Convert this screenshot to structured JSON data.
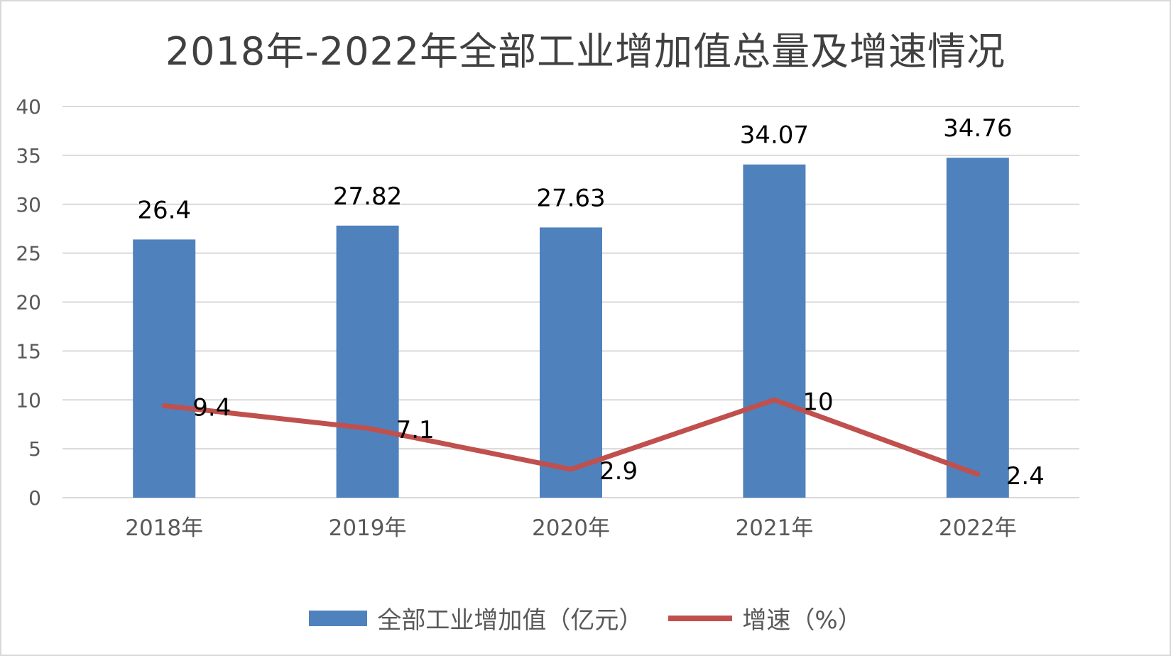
{
  "title": "2018年-2022年全部工业增加值总量及增速情况",
  "colors": {
    "bar": "#4f81bd",
    "line": "#c0504d",
    "grid": "#d9d9d9",
    "tick_text": "#595959"
  },
  "chart_data": {
    "type": "bar",
    "title": "2018年-2022年全部工业增加值总量及增速情况",
    "categories": [
      "2018年",
      "2019年",
      "2020年",
      "2021年",
      "2022年"
    ],
    "series": [
      {
        "name": "全部工业增加值（亿元）",
        "type": "bar",
        "values": [
          26.4,
          27.82,
          27.63,
          34.07,
          34.76
        ],
        "labels": [
          "26.4",
          "27.82",
          "27.63",
          "34.07",
          "34.76"
        ]
      },
      {
        "name": "增速（%）",
        "type": "line",
        "values": [
          9.4,
          7.1,
          2.9,
          10,
          2.4
        ],
        "labels": [
          "9.4",
          "7.1",
          "2.9",
          "10",
          "2.4"
        ]
      }
    ],
    "ylim": [
      0,
      40
    ],
    "yticks": [
      "0",
      "5",
      "10",
      "15",
      "20",
      "25",
      "30",
      "35",
      "40"
    ],
    "grid": true,
    "legend_position": "bottom"
  }
}
